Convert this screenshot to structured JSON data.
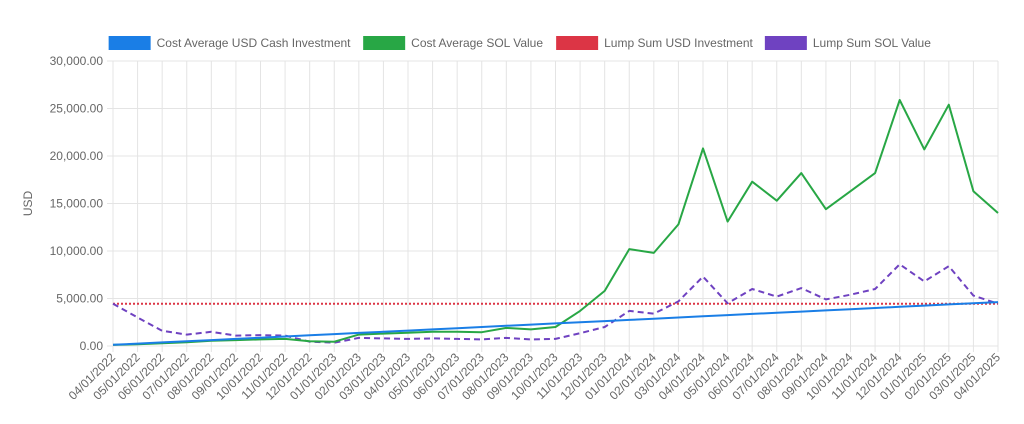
{
  "chart_data": {
    "type": "line",
    "title": "",
    "xlabel": "",
    "ylabel": "USD",
    "ylim": [
      0,
      30000
    ],
    "yticks": [
      "0.00",
      "5,000.00",
      "10,000.00",
      "15,000.00",
      "20,000.00",
      "25,000.00",
      "30,000.00"
    ],
    "ytick_values": [
      0,
      5000,
      10000,
      15000,
      20000,
      25000,
      30000
    ],
    "grid": true,
    "legend_position": "top",
    "categories": [
      "04/01/2022",
      "05/01/2022",
      "06/01/2022",
      "07/01/2022",
      "08/01/2022",
      "09/01/2022",
      "10/01/2022",
      "11/01/2022",
      "12/01/2022",
      "01/01/2023",
      "02/01/2023",
      "03/01/2023",
      "04/01/2023",
      "05/01/2023",
      "06/01/2023",
      "07/01/2023",
      "08/01/2023",
      "09/01/2023",
      "10/01/2023",
      "11/01/2023",
      "12/01/2023",
      "01/01/2024",
      "02/01/2024",
      "03/01/2024",
      "04/01/2024",
      "05/01/2024",
      "06/01/2024",
      "07/01/2024",
      "08/01/2024",
      "09/01/2024",
      "10/01/2024",
      "11/01/2024",
      "12/01/2024",
      "01/01/2025",
      "02/01/2025",
      "03/01/2025",
      "04/01/2025"
    ],
    "series": [
      {
        "name": "Cost Average USD Cash Investment",
        "color": "#1a7ee6",
        "style": "solid",
        "values": [
          125,
          250,
          375,
          500,
          625,
          750,
          875,
          1000,
          1125,
          1250,
          1375,
          1500,
          1625,
          1750,
          1875,
          2000,
          2125,
          2250,
          2375,
          2500,
          2625,
          2750,
          2875,
          3000,
          3125,
          3250,
          3375,
          3500,
          3625,
          3750,
          3875,
          4000,
          4125,
          4250,
          4375,
          4500,
          4625
        ]
      },
      {
        "name": "Cost Average SOL Value",
        "color": "#28a745",
        "style": "solid",
        "values": [
          120,
          180,
          280,
          400,
          550,
          620,
          700,
          750,
          500,
          450,
          1200,
          1300,
          1400,
          1500,
          1500,
          1450,
          1900,
          1750,
          2000,
          3700,
          5800,
          10200,
          9800,
          12800,
          20800,
          13100,
          17300,
          15300,
          18200,
          14400,
          16300,
          18200,
          25900,
          20700,
          25400,
          16300,
          14000
        ]
      },
      {
        "name": "Lump Sum USD Investment",
        "color": "#dc3545",
        "style": "dotted",
        "values": [
          4450,
          4450,
          4450,
          4450,
          4450,
          4450,
          4450,
          4450,
          4450,
          4450,
          4450,
          4450,
          4450,
          4450,
          4450,
          4450,
          4450,
          4450,
          4450,
          4450,
          4450,
          4450,
          4450,
          4450,
          4450,
          4450,
          4450,
          4450,
          4450,
          4450,
          4450,
          4450,
          4450,
          4450,
          4450,
          4450,
          4450
        ]
      },
      {
        "name": "Lump Sum SOL Value",
        "color": "#6f42c1",
        "style": "dashed",
        "values": [
          4450,
          3000,
          1600,
          1200,
          1500,
          1100,
          1150,
          1100,
          450,
          350,
          850,
          800,
          750,
          800,
          750,
          700,
          850,
          700,
          750,
          1350,
          2000,
          3700,
          3400,
          4700,
          7300,
          4500,
          6000,
          5200,
          6100,
          4900,
          5400,
          6000,
          8600,
          6800,
          8400,
          5300,
          4450
        ]
      }
    ]
  }
}
